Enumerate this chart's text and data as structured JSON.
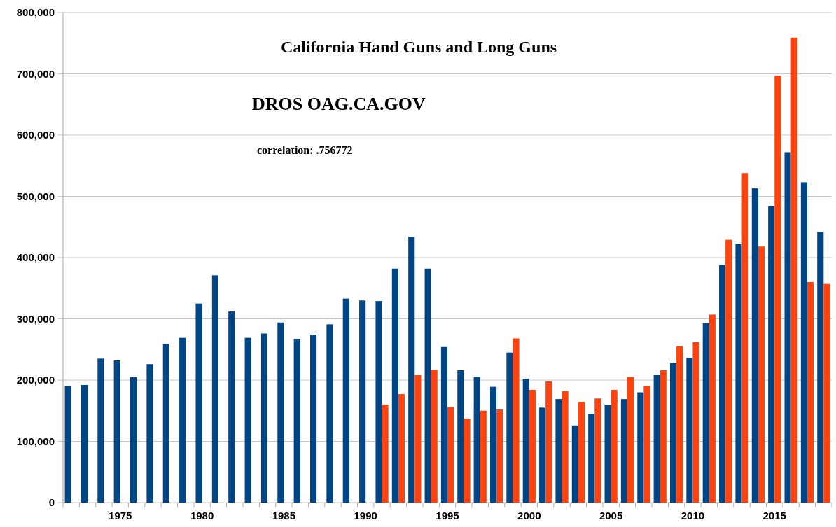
{
  "chart_data": {
    "type": "bar",
    "title": "California Hand Guns and Long Guns",
    "subtitle": "DROS OAG.CA.GOV",
    "annotations": [
      "correlation: .756772"
    ],
    "categories": [
      null,
      null,
      null,
      "1975",
      null,
      null,
      null,
      null,
      "1980",
      null,
      null,
      null,
      null,
      "1985",
      null,
      null,
      null,
      null,
      "1990",
      null,
      null,
      null,
      null,
      "1995",
      null,
      null,
      null,
      null,
      "2000",
      null,
      null,
      null,
      null,
      "2005",
      null,
      null,
      null,
      null,
      "2010",
      null,
      null,
      null,
      null,
      "2015",
      null,
      null,
      null
    ],
    "series": [
      {
        "color": "#004586",
        "values": [
          190000,
          192000,
          235000,
          232000,
          205000,
          226000,
          259000,
          269000,
          325000,
          371000,
          312000,
          269000,
          276000,
          294000,
          267000,
          274000,
          291000,
          333000,
          330000,
          329000,
          382000,
          434000,
          382000,
          254000,
          216000,
          205000,
          189000,
          245000,
          202000,
          155000,
          169000,
          126000,
          145000,
          160000,
          169000,
          180000,
          208000,
          228000,
          236000,
          293000,
          388000,
          422000,
          513000,
          484000,
          572000,
          523000,
          442000
        ]
      },
      {
        "color": "#ff420e",
        "values": [
          null,
          null,
          null,
          null,
          null,
          null,
          null,
          null,
          null,
          null,
          null,
          null,
          null,
          null,
          null,
          null,
          null,
          null,
          null,
          160000,
          177000,
          208000,
          217000,
          156000,
          137000,
          150000,
          152000,
          268000,
          184000,
          198000,
          182000,
          164000,
          170000,
          184000,
          205000,
          190000,
          216000,
          255000,
          262000,
          307000,
          429000,
          538000,
          418000,
          697000,
          759000,
          360000,
          357000
        ]
      }
    ],
    "ylim": [
      0,
      800000
    ],
    "yticks": [
      {
        "value": 0,
        "label": "0"
      },
      {
        "value": 100000,
        "label": "100,000"
      },
      {
        "value": 200000,
        "label": "200,000"
      },
      {
        "value": 300000,
        "label": "300,000"
      },
      {
        "value": 400000,
        "label": "400,000"
      },
      {
        "value": 500000,
        "label": "500,000"
      },
      {
        "value": 600000,
        "label": "600,000"
      },
      {
        "value": 700000,
        "label": "700,000"
      },
      {
        "value": 800000,
        "label": "800,000"
      }
    ],
    "grid": "y"
  }
}
